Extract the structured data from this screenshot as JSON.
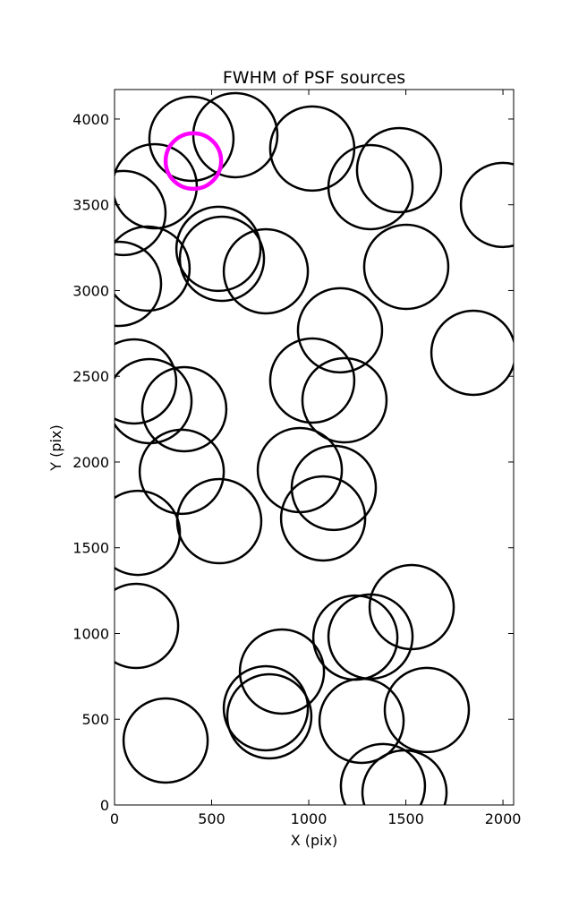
{
  "chart_data": {
    "type": "scatter",
    "title": "FWHM of PSF sources",
    "x_label": "X (pix)",
    "y_label": "Y (pix)",
    "xlim": [
      0,
      2055
    ],
    "ylim": [
      0,
      4172
    ],
    "xticks": [
      0,
      500,
      1000,
      1500,
      2000
    ],
    "yticks": [
      0,
      500,
      1000,
      1500,
      2000,
      2500,
      3000,
      3500,
      4000
    ],
    "series": [
      {
        "color": "#000000",
        "x": [
          396,
          622,
          1018,
          1465,
          1318,
          2000,
          207,
          46,
          170,
          535,
          553,
          779,
          1502,
          23,
          1161,
          1848,
          101,
          1018,
          180,
          1184,
          359,
          346,
          954,
          1129,
          1074,
          539,
          120,
          1530,
          111,
          1240,
          1318,
          862,
          779,
          797,
          1608,
          1272,
          263,
          1382,
          1493
        ],
        "y": [
          3885,
          3906,
          3828,
          3702,
          3603,
          3499,
          3608,
          3452,
          3128,
          3243,
          3185,
          3112,
          3138,
          3039,
          2768,
          2637,
          2470,
          2475,
          2355,
          2360,
          2308,
          1943,
          1953,
          1849,
          1671,
          1655,
          1587,
          1154,
          1044,
          976,
          982,
          778,
          564,
          517,
          554,
          491,
          376,
          110,
          73
        ]
      },
      {
        "color": "#ff00ff",
        "x": [
          406
        ],
        "y": [
          3755
        ]
      }
    ]
  }
}
